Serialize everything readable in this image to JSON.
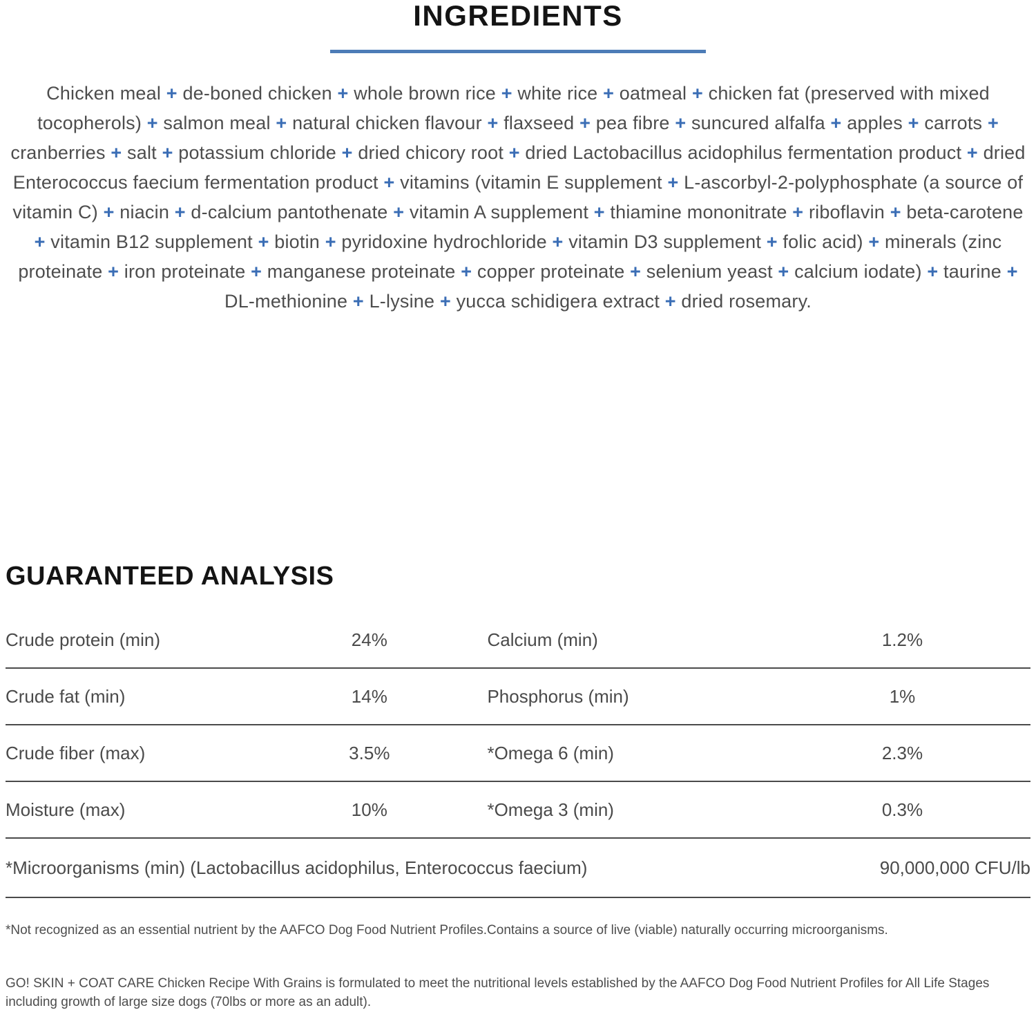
{
  "page": {
    "title": "INGREDIENTS"
  },
  "ingredients": {
    "separator": "+",
    "items": [
      "Chicken meal",
      "de-boned chicken",
      "whole brown rice",
      "white rice",
      "oatmeal",
      "chicken fat (preserved with mixed tocopherols)",
      "salmon meal",
      "natural chicken flavour",
      "flaxseed",
      "pea fibre",
      "suncured alfalfa",
      "apples",
      "carrots",
      "cranberries",
      "salt",
      "potassium chloride",
      "dried chicory root",
      "dried Lactobacillus acidophilus fermentation product",
      "dried Enterococcus faecium fermentation product",
      "vitamins (vitamin E supplement",
      "L-ascorbyl-2-polyphosphate (a source of vitamin C)",
      "niacin",
      "d-calcium pantothenate",
      "vitamin A supplement",
      "thiamine mononitrate",
      "riboflavin",
      "beta-carotene",
      "vitamin B12 supplement",
      "biotin",
      "pyridoxine hydrochloride",
      "vitamin D3 supplement",
      "folic acid)",
      "minerals (zinc proteinate",
      "iron proteinate",
      "manganese proteinate",
      "copper proteinate",
      "selenium yeast",
      "calcium iodate)",
      "taurine",
      "DL-methionine",
      "L-lysine",
      "yucca schidigera extract",
      "dried rosemary."
    ]
  },
  "analysis": {
    "heading": "GUARANTEED ANALYSIS",
    "rows": [
      {
        "left_label": "Crude protein (min)",
        "left_value": "24%",
        "right_label": "Calcium (min)",
        "right_value": "1.2%"
      },
      {
        "left_label": "Crude fat (min)",
        "left_value": "14%",
        "right_label": "Phosphorus (min)",
        "right_value": "1%"
      },
      {
        "left_label": "Crude fiber (max)",
        "left_value": "3.5%",
        "right_label": "*Omega 6 (min)",
        "right_value": "2.3%"
      },
      {
        "left_label": "Moisture (max)",
        "left_value": "10%",
        "right_label": "*Omega 3 (min)",
        "right_value": "0.3%"
      }
    ],
    "wide_row": {
      "label": "*Microorganisms (min) (Lactobacillus acidophilus, Enterococcus faecium)",
      "value": "90,000,000 CFU/lb"
    }
  },
  "footnotes": {
    "note1": "*Not recognized as an essential nutrient by the AAFCO Dog Food Nutrient Profiles.Contains a source of live (viable) naturally occurring microorganisms.",
    "note2": "GO! SKIN + COAT CARE Chicken Recipe With Grains is formulated to meet the nutritional levels established by the AAFCO Dog Food Nutrient Profiles for All Life Stages including growth of large size dogs (70lbs or more as an adult)."
  },
  "colors": {
    "accent_blue": "#3a6db5",
    "divider_blue": "#4d7cb7",
    "heading_dark": "#141414",
    "body_gray": "#4d4d4d",
    "separator_gray": "#4a4a4a"
  }
}
